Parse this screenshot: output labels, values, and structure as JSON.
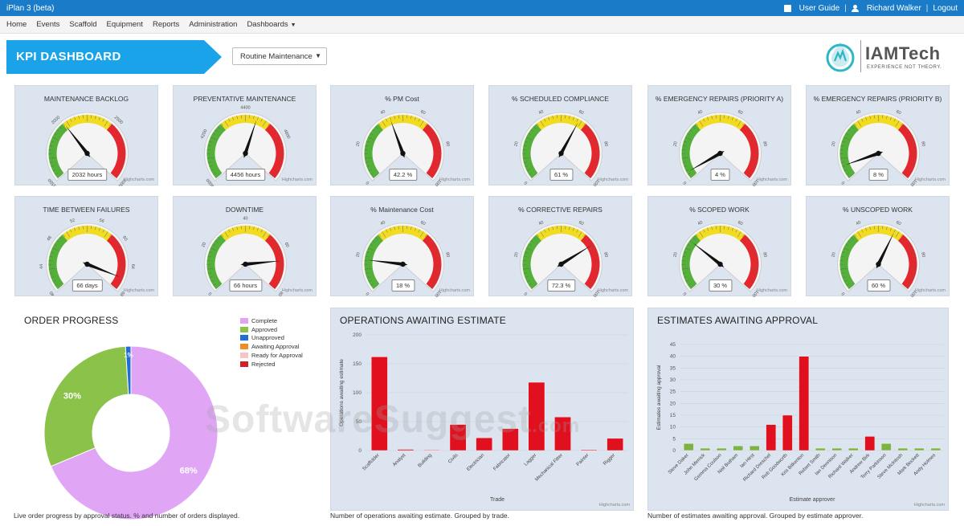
{
  "app": {
    "title": "iPlan 3 (beta)",
    "user_guide": "User Guide",
    "user_name": "Richard Walker",
    "logout": "Logout",
    "separator": "|"
  },
  "menu": [
    {
      "label": "Home"
    },
    {
      "label": "Events"
    },
    {
      "label": "Scaffold"
    },
    {
      "label": "Equipment"
    },
    {
      "label": "Reports"
    },
    {
      "label": "Administration"
    },
    {
      "label": "Dashboards"
    }
  ],
  "kpi": {
    "title": "KPI DASHBOARD",
    "banner_color": "#1aa3e8",
    "dropdown_value": "Routine Maintenance"
  },
  "logo": {
    "name": "IAMTech",
    "tagline": "EXPERIENCE NOT THEORY."
  },
  "credit": "Highcharts.com",
  "gauges": [
    {
      "title": "MAINTENANCE BACKLOG",
      "min": 1500,
      "max": 3000,
      "value": 2032,
      "label": "2032 hours",
      "ticks": [
        "1500",
        "2000",
        "2500",
        "3000"
      ],
      "tickvals": [
        1500,
        2000,
        2500,
        3000
      ]
    },
    {
      "title": "PREVENTATIVE MAINTENANCE",
      "min": 4000,
      "max": 4800,
      "value": 4456,
      "label": "4456 hours",
      "ticks": [
        "4000",
        "4200",
        "4400",
        "4600"
      ],
      "tickvals": [
        4000,
        4200,
        4400,
        4600
      ]
    },
    {
      "title": "% PM Cost",
      "min": 0,
      "max": 100,
      "value": 42.2,
      "label": "42.2 %",
      "ticks": [
        "0",
        "20",
        "40",
        "60",
        "80",
        "100"
      ],
      "tickvals": [
        0,
        20,
        40,
        60,
        80,
        100
      ]
    },
    {
      "title": "% SCHEDULED COMPLIANCE",
      "min": 0,
      "max": 100,
      "value": 61,
      "label": "61 %",
      "ticks": [
        "0",
        "20",
        "40",
        "60",
        "80",
        "100"
      ],
      "tickvals": [
        0,
        20,
        40,
        60,
        80,
        100
      ]
    },
    {
      "title": "% EMERGENCY REPAIRS (PRIORITY A)",
      "min": 0,
      "max": 100,
      "value": 4,
      "label": "4 %",
      "ticks": [
        "0",
        "20",
        "40",
        "60",
        "80",
        "100"
      ],
      "tickvals": [
        0,
        20,
        40,
        60,
        80,
        100
      ]
    },
    {
      "title": "% EMERGENCY REPAIRS (PRIORITY B)",
      "min": 0,
      "max": 100,
      "value": 8,
      "label": "8 %",
      "ticks": [
        "0",
        "20",
        "40",
        "60",
        "80",
        "100"
      ],
      "tickvals": [
        0,
        20,
        40,
        60,
        80,
        100
      ]
    },
    {
      "title": "TIME BETWEEN FAILURES",
      "min": 40,
      "max": 68,
      "value": 66,
      "label": "66 days",
      "ticks": [
        "40",
        "44",
        "48",
        "52",
        "56",
        "60",
        "64",
        "68"
      ],
      "tickvals": [
        40,
        44,
        48,
        52,
        56,
        60,
        64,
        68
      ]
    },
    {
      "title": "DOWNTIME",
      "min": 0,
      "max": 80,
      "value": 66,
      "label": "66 hours",
      "ticks": [
        "0",
        "20",
        "40",
        "60",
        "80"
      ],
      "tickvals": [
        0,
        20,
        40,
        60,
        80
      ]
    },
    {
      "title": "% Maintenance Cost",
      "min": 0,
      "max": 100,
      "value": 18,
      "label": "18 %",
      "ticks": [
        "0",
        "20",
        "40",
        "60",
        "80",
        "100"
      ],
      "tickvals": [
        0,
        20,
        40,
        60,
        80,
        100
      ]
    },
    {
      "title": "% CORRECTIVE REPAIRS",
      "min": 0,
      "max": 100,
      "value": 72.3,
      "label": "72.3 %",
      "ticks": [
        "0",
        "20",
        "40",
        "60",
        "80",
        "100"
      ],
      "tickvals": [
        0,
        20,
        40,
        60,
        80,
        100
      ]
    },
    {
      "title": "% SCOPED WORK",
      "min": 0,
      "max": 100,
      "value": 30,
      "label": "30 %",
      "ticks": [
        "0",
        "20",
        "40",
        "60",
        "80",
        "100"
      ],
      "tickvals": [
        0,
        20,
        40,
        60,
        80,
        100
      ]
    },
    {
      "title": "% UNSCOPED WORK",
      "min": 0,
      "max": 100,
      "value": 60,
      "label": "60 %",
      "ticks": [
        "0",
        "20",
        "40",
        "60",
        "80",
        "100"
      ],
      "tickvals": [
        0,
        20,
        40,
        60,
        80,
        100
      ]
    }
  ],
  "order_progress": {
    "title": "ORDER PROGRESS",
    "caption": "Live order progress by approval status. % and number of orders displayed.",
    "chart_data": {
      "type": "pie",
      "slices": [
        {
          "name": "Complete",
          "value": 68,
          "label": "68%",
          "color": "#e0a6f5"
        },
        {
          "name": "Approved",
          "value": 30,
          "label": "30%",
          "color": "#8bc34a"
        },
        {
          "name": "Unapproved",
          "value": 1,
          "label": "1%",
          "color": "#1f6fd1"
        },
        {
          "name": "Awaiting Approval",
          "value": 0,
          "label": "",
          "color": "#f28c1e"
        },
        {
          "name": "Ready for Approval",
          "value": 0,
          "label": "",
          "color": "#f7c4c4"
        },
        {
          "name": "Rejected",
          "value": 0,
          "label": "",
          "color": "#d0202b"
        }
      ],
      "legend_position": "top-right"
    }
  },
  "ops_awaiting": {
    "title": "OPERATIONS AWAITING ESTIMATE",
    "caption": "Number of operations awaiting estimate. Grouped by trade.",
    "chart_data": {
      "type": "bar",
      "categories": [
        "Scaffolder",
        "Analyst",
        "Building",
        "Civils",
        "Electrician",
        "Fabricator",
        "Lagger",
        "Mechanical Fitter",
        "Painter",
        "Rigger"
      ],
      "values": [
        162,
        2,
        0,
        45,
        22,
        38,
        118,
        58,
        1,
        21
      ],
      "xlabel": "Trade",
      "ylabel": "Operations awaiting estimate",
      "ylim": [
        0,
        200
      ],
      "yticks": [
        "0",
        "50",
        "100",
        "150",
        "200"
      ],
      "color": "#e0101e"
    }
  },
  "est_awaiting": {
    "title": "ESTIMATES AWAITING APPROVAL",
    "caption": "Number of estimates awaiting approval. Grouped by estimate approver.",
    "chart_data": {
      "type": "bar",
      "categories": [
        "Steve Daker",
        "John Merrick",
        "Gemma Coulson",
        "Neil Botham",
        "Ian Hirst",
        "Richard Dreschel",
        "Rob Goodworth",
        "Kris Bitkenton",
        "Robert Smith",
        "Ian Dennison",
        "Richard Walker",
        "Andrew Birk",
        "Terry Parkinson",
        "Steve McIntosh",
        "Mark Beckett",
        "Andy Holmes"
      ],
      "values": [
        3,
        1,
        1,
        2,
        2,
        11,
        15,
        40,
        1,
        1,
        1,
        6,
        3,
        1,
        1,
        1
      ],
      "colors": [
        "#7cb342",
        "#7cb342",
        "#7cb342",
        "#7cb342",
        "#7cb342",
        "#e0101e",
        "#e0101e",
        "#e0101e",
        "#7cb342",
        "#7cb342",
        "#7cb342",
        "#e0101e",
        "#7cb342",
        "#7cb342",
        "#7cb342",
        "#7cb342"
      ],
      "xlabel": "Estimate approver",
      "ylabel": "Estimates awaiting approval",
      "ylim": [
        0,
        45
      ],
      "yticks": [
        "0",
        "5",
        "10",
        "15",
        "20",
        "25",
        "30",
        "35",
        "40",
        "45"
      ]
    }
  },
  "watermark": {
    "main": "SoftwareSuggest",
    "suffix": ".com"
  }
}
